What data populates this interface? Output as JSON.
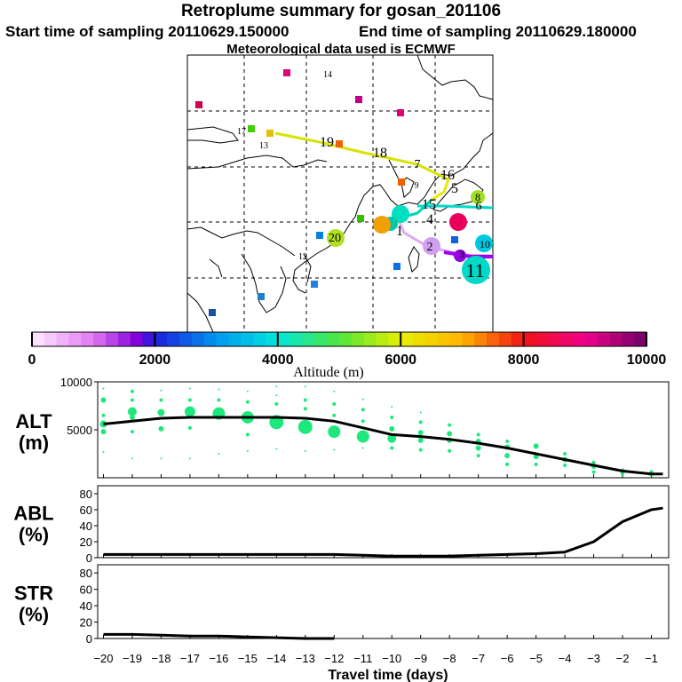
{
  "header": {
    "title": "Retroplume summary for gosan_201106",
    "start_time": "Start time of sampling 20110629.150000",
    "end_time": "End time of sampling 20110629.180000",
    "meteo": "Meteorological data used is ECMWF"
  },
  "colors": {
    "dot": "#1ee87c",
    "line": "#000000"
  },
  "chart_data": [
    {
      "type": "line",
      "title": "Retroplume summary for gosan_201106",
      "map_labels": [
        "1",
        "2",
        "3",
        "4",
        "5",
        "6",
        "7",
        "8",
        "9",
        "10",
        "11",
        "12",
        "13",
        "14",
        "15",
        "16",
        "17",
        "18",
        "19",
        "20"
      ],
      "colorbar": {
        "xlabel": "Altitude (m)",
        "ticks": [
          "0",
          "2000",
          "4000",
          "6000",
          "8000",
          "10000"
        ],
        "range": [
          0,
          10000
        ]
      }
    },
    {
      "type": "line",
      "ylabel": "ALT (m)",
      "ylabel_top": "ALT",
      "ylabel_unit": "(m)",
      "ylim": [
        0,
        10000
      ],
      "yticks": [
        "10000",
        "5000"
      ],
      "x": [
        -20,
        -19,
        -18,
        -17,
        -16,
        -15,
        -14,
        -13,
        -12,
        -11,
        -10,
        -9,
        -8,
        -7,
        -6,
        -5,
        -4,
        -3,
        -2,
        -1,
        -0.6
      ],
      "series": [
        {
          "name": "mean altitude",
          "values": [
            5600,
            5900,
            6200,
            6300,
            6300,
            6300,
            6300,
            6200,
            5900,
            5200,
            4500,
            4300,
            4000,
            3600,
            3100,
            2500,
            1900,
            1300,
            700,
            400,
            400
          ]
        }
      ],
      "spread": [
        {
          "x": -20,
          "pts": [
            [
              2700,
              1
            ],
            [
              4800,
              3
            ],
            [
              5600,
              4
            ],
            [
              6500,
              2
            ],
            [
              8100,
              3
            ],
            [
              9300,
              1
            ]
          ]
        },
        {
          "x": -19,
          "pts": [
            [
              2000,
              1
            ],
            [
              4800,
              2
            ],
            [
              6300,
              3
            ],
            [
              6900,
              5
            ],
            [
              8100,
              2
            ],
            [
              9000,
              2
            ]
          ]
        },
        {
          "x": -18,
          "pts": [
            [
              2000,
              1
            ],
            [
              5100,
              3
            ],
            [
              6800,
              4
            ],
            [
              8100,
              2
            ],
            [
              9100,
              1
            ]
          ]
        },
        {
          "x": -17,
          "pts": [
            [
              2000,
              1
            ],
            [
              5200,
              2
            ],
            [
              6900,
              6
            ],
            [
              8100,
              2
            ],
            [
              9300,
              1
            ]
          ]
        },
        {
          "x": -16,
          "pts": [
            [
              2500,
              1
            ],
            [
              6700,
              7
            ],
            [
              8100,
              2
            ],
            [
              9200,
              1
            ]
          ]
        },
        {
          "x": -15,
          "pts": [
            [
              2800,
              1
            ],
            [
              4500,
              2
            ],
            [
              6300,
              7
            ],
            [
              7900,
              2
            ],
            [
              9000,
              1
            ]
          ]
        },
        {
          "x": -14,
          "pts": [
            [
              3000,
              1
            ],
            [
              5800,
              8
            ],
            [
              7700,
              2
            ],
            [
              8600,
              1
            ],
            [
              9500,
              1
            ]
          ]
        },
        {
          "x": -13,
          "pts": [
            [
              2800,
              1
            ],
            [
              5300,
              8
            ],
            [
              7200,
              2
            ],
            [
              8100,
              2
            ],
            [
              9500,
              1
            ]
          ]
        },
        {
          "x": -12,
          "pts": [
            [
              2900,
              1
            ],
            [
              4800,
              7
            ],
            [
              6500,
              2
            ],
            [
              7700,
              2
            ],
            [
              9000,
              1
            ]
          ]
        },
        {
          "x": -11,
          "pts": [
            [
              3100,
              1
            ],
            [
              4300,
              7
            ],
            [
              5900,
              2
            ],
            [
              7100,
              2
            ],
            [
              8200,
              1
            ]
          ]
        },
        {
          "x": -10,
          "pts": [
            [
              3100,
              2
            ],
            [
              4100,
              5
            ],
            [
              5100,
              3
            ],
            [
              6300,
              2
            ],
            [
              7400,
              1
            ]
          ]
        },
        {
          "x": -9,
          "pts": [
            [
              2900,
              2
            ],
            [
              3900,
              3
            ],
            [
              4700,
              3
            ],
            [
              5800,
              2
            ],
            [
              6800,
              1
            ]
          ]
        },
        {
          "x": -8,
          "pts": [
            [
              2800,
              2
            ],
            [
              3900,
              3
            ],
            [
              4600,
              3
            ],
            [
              5500,
              2
            ]
          ]
        },
        {
          "x": -7,
          "pts": [
            [
              2300,
              2
            ],
            [
              3100,
              3
            ],
            [
              3800,
              3
            ],
            [
              4500,
              2
            ]
          ]
        },
        {
          "x": -6,
          "pts": [
            [
              1400,
              2
            ],
            [
              2300,
              3
            ],
            [
              3200,
              3
            ],
            [
              3800,
              2
            ]
          ]
        },
        {
          "x": -5,
          "pts": [
            [
              1400,
              2
            ],
            [
              2200,
              3
            ],
            [
              3300,
              3
            ]
          ]
        },
        {
          "x": -4,
          "pts": [
            [
              1300,
              2
            ],
            [
              1900,
              3
            ],
            [
              2500,
              2
            ]
          ]
        },
        {
          "x": -3,
          "pts": [
            [
              600,
              2
            ],
            [
              1200,
              3
            ],
            [
              1600,
              2
            ]
          ]
        },
        {
          "x": -2,
          "pts": [
            [
              400,
              2
            ],
            [
              700,
              3
            ]
          ]
        },
        {
          "x": -1,
          "pts": [
            [
              400,
              3
            ],
            [
              600,
              2
            ]
          ]
        }
      ]
    },
    {
      "type": "line",
      "ylabel": "ABL (%)",
      "ylabel_top": "ABL",
      "ylabel_unit": "(%)",
      "ylim": [
        0,
        90
      ],
      "yticks": [
        "80",
        "60",
        "40",
        "20",
        "0"
      ],
      "x": [
        -20,
        -19,
        -18,
        -17,
        -16,
        -15,
        -14,
        -13,
        -12,
        -11,
        -10,
        -9,
        -8,
        -7,
        -6,
        -5,
        -4,
        -3,
        -2,
        -1,
        -0.6
      ],
      "series": [
        {
          "name": "ABL",
          "values": [
            4,
            4,
            4,
            4,
            4,
            4,
            4,
            4,
            4,
            3,
            2,
            2,
            2,
            3,
            4,
            5,
            7,
            20,
            45,
            60,
            62
          ]
        }
      ]
    },
    {
      "type": "line",
      "ylabel": "STR (%)",
      "ylabel_top": "STR",
      "ylabel_unit": "(%)",
      "ylim": [
        0,
        90
      ],
      "yticks": [
        "80",
        "60",
        "40",
        "20",
        "0"
      ],
      "x": [
        -20,
        -19,
        -18,
        -17,
        -16,
        -15,
        -14,
        -13,
        -12
      ],
      "series": [
        {
          "name": "STR",
          "values": [
            5,
            5,
            4,
            3,
            3,
            2,
            1,
            0,
            0
          ]
        }
      ],
      "xlabel": "Travel time (days)",
      "xticks": [
        "−20",
        "−19",
        "−18",
        "−17",
        "−16",
        "−15",
        "−14",
        "−13",
        "−12",
        "−11",
        "−10",
        "−9",
        "−8",
        "−7",
        "−6",
        "−5",
        "−4",
        "−3",
        "−2",
        "−1"
      ]
    }
  ]
}
